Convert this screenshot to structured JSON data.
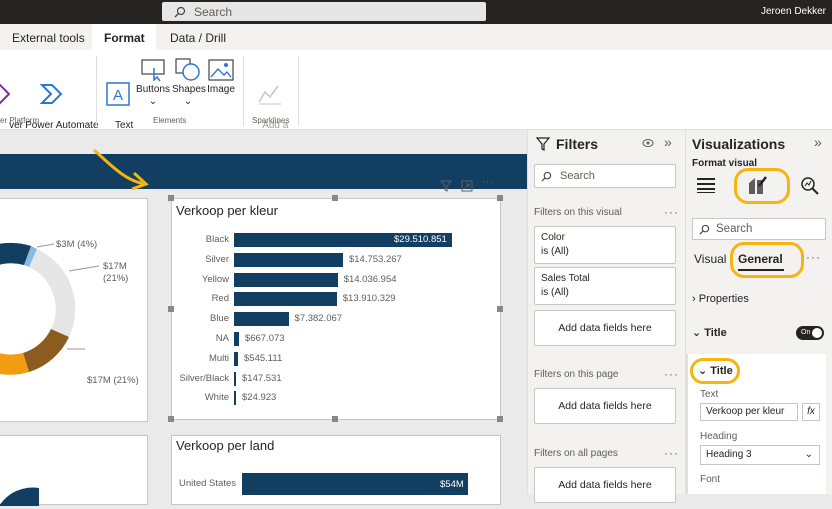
{
  "titlebar": {
    "search_placeholder": "Search",
    "user": "Jeroen Dekker"
  },
  "tabs": [
    {
      "label": "External tools"
    },
    {
      "label": "Format"
    },
    {
      "label": "Data / Drill"
    }
  ],
  "ribbon": {
    "power_partial": "ver\nps",
    "power_automate": "Power Automate\n(preview)",
    "group_power": "er Platform",
    "textbox": "Text\nbox",
    "buttons": "Buttons",
    "shapes": "Shapes",
    "image": "Image",
    "group_elements": "Elements",
    "sparkline": "Add a\nsparkline",
    "group_sparklines": "Sparklines"
  },
  "donut": {
    "label1": "$3M (4%)",
    "label2": "$17M\n(21%)",
    "label3": "$17M (21%)"
  },
  "chart_data": {
    "type": "bar",
    "title": "Verkoop per kleur",
    "categories": [
      "Black",
      "Silver",
      "Yellow",
      "Red",
      "Blue",
      "NA",
      "Multi",
      "Silver/Black",
      "White"
    ],
    "values": [
      29510851,
      14753267,
      14036954,
      13910329,
      7382067,
      667073,
      545111,
      147531,
      24923
    ],
    "labels": [
      "$29.510.851",
      "$14.753.267",
      "$14.036.954",
      "$13.910.329",
      "$7.382.067",
      "$667.073",
      "$545.111",
      "$147.531",
      "$24.923"
    ]
  },
  "chart2": {
    "title": "Verkoop per land",
    "category": "United States",
    "value": "$54M"
  },
  "filters": {
    "title": "Filters",
    "search": "Search",
    "on_visual": "Filters on this visual",
    "card1": {
      "name": "Color",
      "value": "is (All)"
    },
    "card2": {
      "name": "Sales Total",
      "value": "is (All)"
    },
    "add": "Add data fields here",
    "on_page": "Filters on this page",
    "on_all": "Filters on all pages"
  },
  "viz": {
    "title": "Visualizations",
    "subtitle": "Format visual",
    "search": "Search",
    "tab_visual": "Visual",
    "tab_general": "General",
    "properties": "Properties",
    "title_section": "Title",
    "toggle": "On",
    "title_sub": "Title",
    "text_label": "Text",
    "text_value": "Verkoop per kleur",
    "fx": "fx",
    "heading_label": "Heading",
    "heading_value": "Heading 3",
    "font_label": "Font"
  },
  "colors": {
    "accent": "#123e62",
    "highlight": "#f6b40e"
  }
}
